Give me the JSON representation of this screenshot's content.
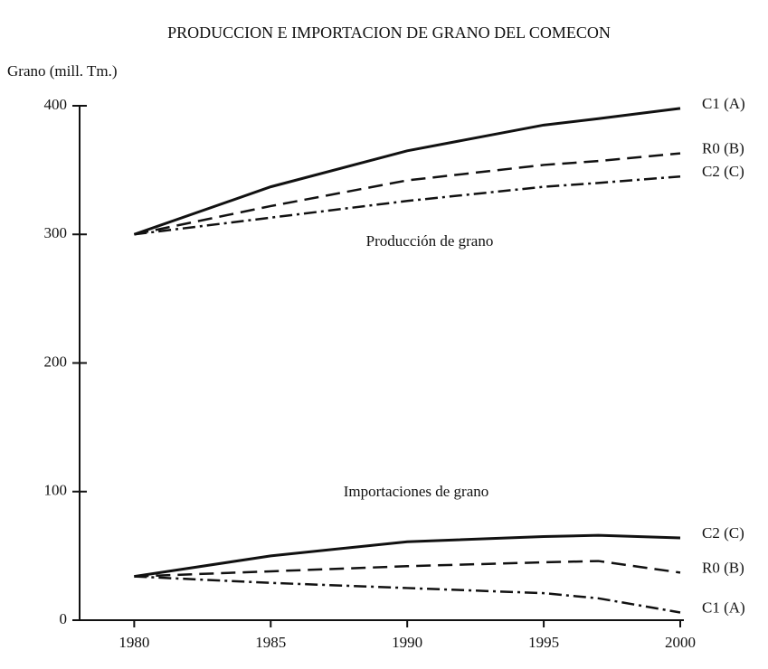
{
  "chart_data": {
    "type": "line",
    "title": "PRODUCCION E IMPORTACION DE GRANO DEL COMECON",
    "y_label": "Grano (mill. Tm.)",
    "annotations": [
      "Producción de grano",
      "Importaciones de grano"
    ],
    "x": [
      1980,
      1985,
      1990,
      1995,
      1997,
      2000
    ],
    "xlim": [
      1978,
      2000
    ],
    "xticks": [
      1980,
      1985,
      1990,
      1995,
      2000
    ],
    "ylim": [
      0,
      400
    ],
    "yticks": [
      0,
      100,
      200,
      300,
      400
    ],
    "series": [
      {
        "name": "C1 (A)",
        "color": "#111111",
        "dash": "solid",
        "values": [
          300,
          337,
          365,
          385,
          390,
          398
        ]
      },
      {
        "name": "R0 (B)",
        "color": "#111111",
        "dash": "dashed",
        "values": [
          300,
          322,
          342,
          354,
          357,
          363
        ]
      },
      {
        "name": "C2 (C)",
        "color": "#111111",
        "dash": "dashdot",
        "values": [
          300,
          313,
          326,
          337,
          340,
          345
        ]
      },
      {
        "name": "C2 (C)",
        "color": "#111111",
        "dash": "solid",
        "values": [
          34,
          50,
          61,
          65,
          66,
          64
        ]
      },
      {
        "name": "R0 (B)",
        "color": "#111111",
        "dash": "dashed",
        "values": [
          34,
          38,
          42,
          45,
          46,
          37
        ]
      },
      {
        "name": "C1 (A)",
        "color": "#111111",
        "dash": "dashdot",
        "values": [
          34,
          29,
          25,
          21,
          17,
          6
        ]
      }
    ]
  }
}
